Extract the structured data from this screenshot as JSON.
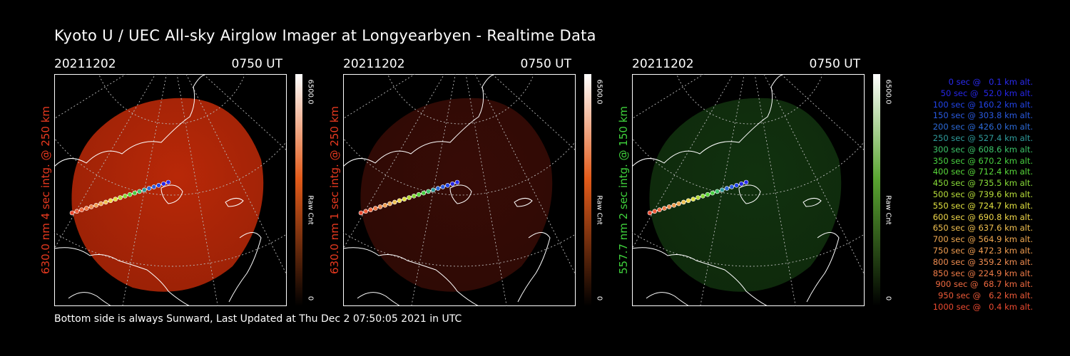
{
  "title": "Kyoto U / UEC All-sky Airglow Imager at Longyearbyen - Realtime Data",
  "footer": "Bottom side is always Sunward, Last Updated at Thu Dec  2 07:50:05 2021 in UTC",
  "panels": [
    {
      "date": "20211202",
      "time": "0750 UT",
      "side_label": "630.0 nm 4 sec intg. @ 250 km",
      "label_color": "#e8391f",
      "cbar_max": "6500.0",
      "cbar_label": "Raw Cnt",
      "cbar_min": "0",
      "image_color": "#c22a08",
      "image_opacity": 0.95,
      "cbar_color": "#e35b1a"
    },
    {
      "date": "20211202",
      "time": "0750 UT",
      "side_label": "630.0 nm 1 sec intg. @ 250 km",
      "label_color": "#e8391f",
      "cbar_max": "6500.0",
      "cbar_label": "Raw Cnt",
      "cbar_min": "0",
      "image_color": "#3a0c06",
      "image_opacity": 0.95,
      "cbar_color": "#e35b1a"
    },
    {
      "date": "20211202",
      "time": "0750 UT",
      "side_label": "557.7 nm 2 sec intg. @ 150 km",
      "label_color": "#3fd23c",
      "cbar_max": "6500.0",
      "cbar_label": "Raw Cnt",
      "cbar_min": "0",
      "image_color": "#12340f",
      "image_opacity": 0.95,
      "cbar_color": "#5aa531"
    }
  ],
  "legend": [
    {
      "text": "0 sec @   0.1 km alt.",
      "color": "#2a2af0"
    },
    {
      "text": "50 sec @  52.0 km alt.",
      "color": "#2626e8"
    },
    {
      "text": "100 sec @ 160.2 km alt.",
      "color": "#2244e8"
    },
    {
      "text": "150 sec @ 303.8 km alt.",
      "color": "#2a5ae0"
    },
    {
      "text": "200 sec @ 426.0 km alt.",
      "color": "#2c6ad8"
    },
    {
      "text": "250 sec @ 527.4 km alt.",
      "color": "#2f9c9c"
    },
    {
      "text": "300 sec @ 608.6 km alt.",
      "color": "#3cc468"
    },
    {
      "text": "350 sec @ 670.2 km alt.",
      "color": "#48d040"
    },
    {
      "text": "400 sec @ 712.4 km alt.",
      "color": "#58d83a"
    },
    {
      "text": "450 sec @ 735.5 km alt.",
      "color": "#88dc38"
    },
    {
      "text": "500 sec @ 739.6 km alt.",
      "color": "#b8de3a"
    },
    {
      "text": "550 sec @ 724.7 km alt.",
      "color": "#e0e040"
    },
    {
      "text": "600 sec @ 690.8 km alt.",
      "color": "#f0d84a"
    },
    {
      "text": "650 sec @ 637.6 km alt.",
      "color": "#f0c050"
    },
    {
      "text": "700 sec @ 564.9 km alt.",
      "color": "#f0a850"
    },
    {
      "text": "750 sec @ 472.3 km alt.",
      "color": "#f09c50"
    },
    {
      "text": "800 sec @ 359.2 km alt.",
      "color": "#f08c50"
    },
    {
      "text": "850 sec @ 224.9 km alt.",
      "color": "#f07c48"
    },
    {
      "text": "900 sec @  68.7 km alt.",
      "color": "#f06a40"
    },
    {
      "text": "950 sec @   6.2 km alt.",
      "color": "#ee5a38"
    },
    {
      "text": "1000 sec @   0.4 km alt.",
      "color": "#ec4a30"
    }
  ]
}
